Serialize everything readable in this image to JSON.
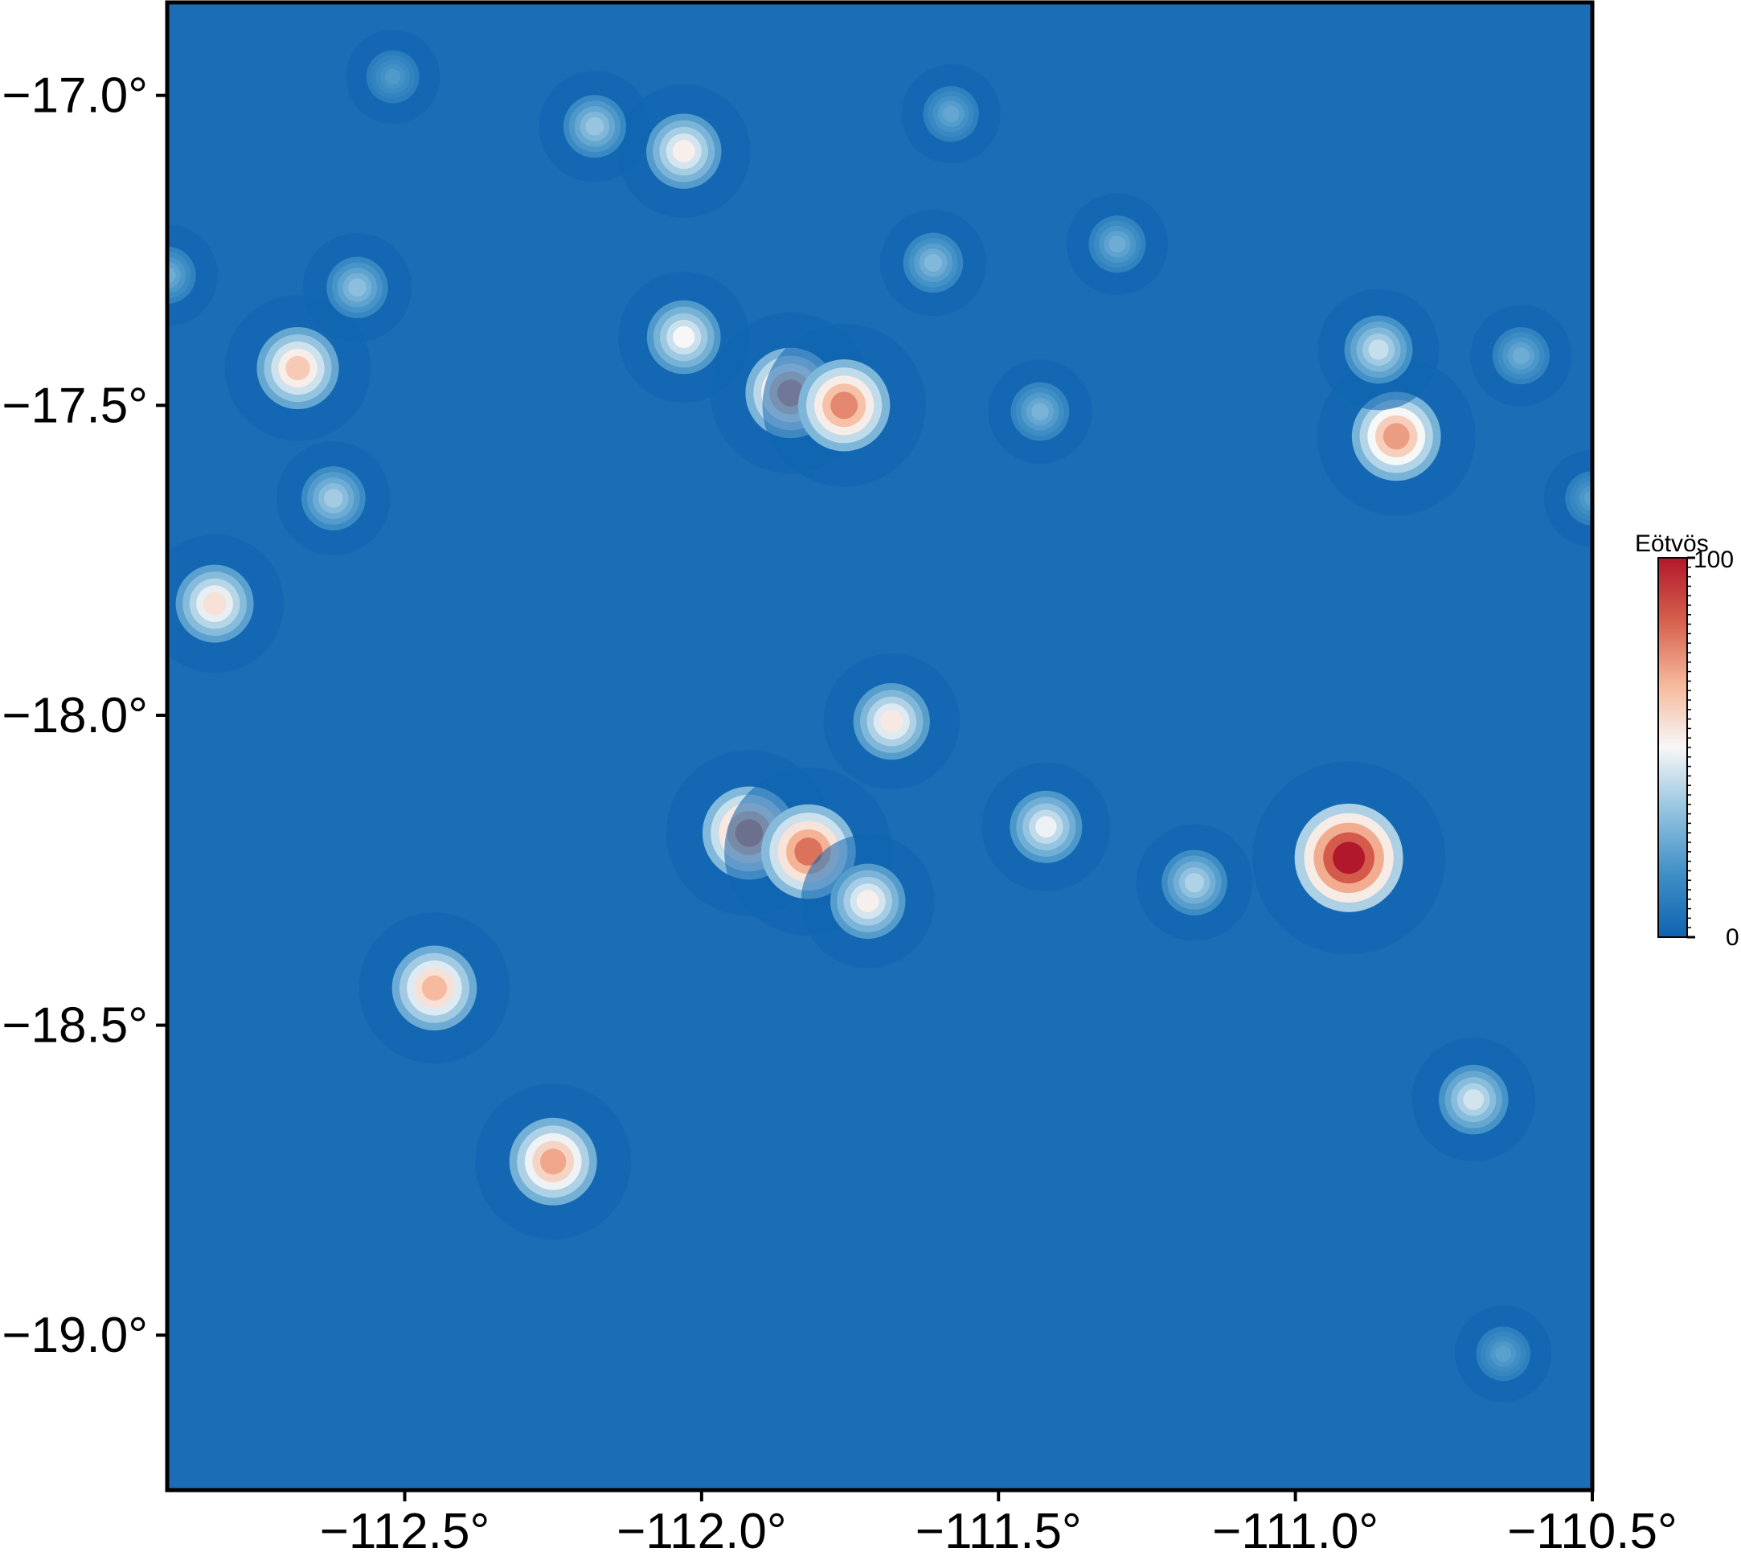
{
  "chart_data": {
    "type": "heatmap",
    "title": "",
    "xlabel": "",
    "ylabel": "",
    "xlim": [
      -112.9,
      -110.5
    ],
    "ylim": [
      -19.25,
      -16.85
    ],
    "x_ticks": [
      {
        "value": -112.5,
        "label": "−112.5°"
      },
      {
        "value": -112.0,
        "label": "−112.0°"
      },
      {
        "value": -111.5,
        "label": "−111.5°"
      },
      {
        "value": -111.0,
        "label": "−111.0°"
      },
      {
        "value": -110.5,
        "label": "−110.5°"
      }
    ],
    "y_ticks": [
      {
        "value": -17.0,
        "label": "−17.0°"
      },
      {
        "value": -17.5,
        "label": "−17.5°"
      },
      {
        "value": -18.0,
        "label": "−18.0°"
      },
      {
        "value": -18.5,
        "label": "−18.5°"
      },
      {
        "value": -19.0,
        "label": "−19.0°"
      }
    ],
    "colorbar": {
      "title": "Eötvös",
      "colormap": [
        "#0f64b0",
        "#3f8fc6",
        "#93c3df",
        "#f7f7f7",
        "#f6b89a",
        "#d6604d",
        "#b2182b"
      ],
      "range": [
        0,
        100
      ],
      "ticks": [
        {
          "value": 100,
          "label": "100"
        },
        {
          "value": 0,
          "label": "0"
        }
      ]
    },
    "background_value": 4,
    "features": [
      {
        "lon": -111.92,
        "lat": -18.19,
        "value": 78
      },
      {
        "lon": -111.82,
        "lat": -18.22,
        "value": 80
      },
      {
        "lon": -111.72,
        "lat": -18.3,
        "value": 52
      },
      {
        "lon": -111.85,
        "lat": -17.48,
        "value": 74
      },
      {
        "lon": -111.76,
        "lat": -17.5,
        "value": 76
      },
      {
        "lon": -112.68,
        "lat": -17.44,
        "value": 62
      },
      {
        "lon": -112.25,
        "lat": -18.72,
        "value": 70
      },
      {
        "lon": -112.45,
        "lat": -18.44,
        "value": 66
      },
      {
        "lon": -112.82,
        "lat": -17.82,
        "value": 56
      },
      {
        "lon": -112.03,
        "lat": -17.09,
        "value": 52
      },
      {
        "lon": -112.03,
        "lat": -17.39,
        "value": 50
      },
      {
        "lon": -111.68,
        "lat": -18.01,
        "value": 54
      },
      {
        "lon": -110.83,
        "lat": -17.55,
        "value": 72
      },
      {
        "lon": -110.86,
        "lat": -17.41,
        "value": 42
      },
      {
        "lon": -110.91,
        "lat": -18.23,
        "value": 100
      },
      {
        "lon": -111.42,
        "lat": -18.18,
        "value": 48
      },
      {
        "lon": -111.17,
        "lat": -18.27,
        "value": 38
      },
      {
        "lon": -110.7,
        "lat": -18.62,
        "value": 44
      },
      {
        "lon": -112.18,
        "lat": -17.05,
        "value": 34
      },
      {
        "lon": -112.62,
        "lat": -17.65,
        "value": 36
      },
      {
        "lon": -112.58,
        "lat": -17.31,
        "value": 32
      },
      {
        "lon": -111.61,
        "lat": -17.27,
        "value": 30
      },
      {
        "lon": -111.43,
        "lat": -17.51,
        "value": 28
      },
      {
        "lon": -111.3,
        "lat": -17.24,
        "value": 26
      },
      {
        "lon": -110.62,
        "lat": -17.42,
        "value": 26
      },
      {
        "lon": -111.58,
        "lat": -17.03,
        "value": 24
      },
      {
        "lon": -110.65,
        "lat": -19.03,
        "value": 22
      },
      {
        "lon": -112.52,
        "lat": -16.97,
        "value": 20
      },
      {
        "lon": -112.9,
        "lat": -17.29,
        "value": 26
      },
      {
        "lon": -110.5,
        "lat": -17.65,
        "value": 22
      }
    ]
  }
}
